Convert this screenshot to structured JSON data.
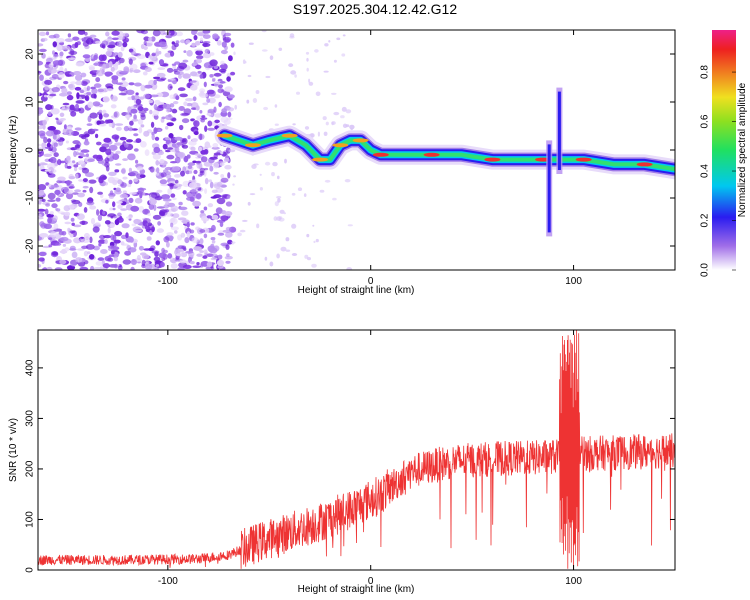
{
  "title": "S197.2025.304.12.42.G12",
  "colors": {
    "snr_line": "#ee3333",
    "axis": "#000000",
    "speckle": "#7a2fe0",
    "ridge_core": "#e83a3a"
  },
  "chart_data": [
    {
      "type": "heatmap",
      "name": "spectrogram",
      "xlabel": "Height of straight line (km)",
      "ylabel": "Frequency (Hz)",
      "xlim": [
        -164,
        150
      ],
      "ylim": [
        -25,
        25
      ],
      "xticks": [
        -100,
        0,
        100
      ],
      "xtick_labels": [
        "-100",
        "0",
        "100"
      ],
      "yticks": [
        -20,
        -10,
        0,
        10,
        20
      ],
      "ytick_labels": [
        "-20",
        "-10",
        "0",
        "10",
        "20"
      ],
      "colorbar": {
        "label": "Normalized spectral amplitude",
        "range": [
          0.0,
          0.97
        ],
        "ticks": [
          0.0,
          0.2,
          0.4,
          0.6,
          0.8
        ],
        "tick_labels": [
          "0.0",
          "0.2",
          "0.4",
          "0.6",
          "0.8"
        ]
      },
      "ridge": {
        "x": [
          -72,
          -65,
          -58,
          -50,
          -40,
          -32,
          -25,
          -20,
          -15,
          -10,
          -5,
          0,
          5,
          15,
          30,
          45,
          60,
          75,
          85,
          95,
          105,
          120,
          135,
          150
        ],
        "freq": [
          3,
          2,
          1,
          2,
          3,
          1,
          -2,
          -2,
          1,
          2,
          2,
          0,
          -1,
          -1,
          -1,
          -1,
          -2,
          -2,
          -2,
          -2,
          -2,
          -3,
          -3,
          -4
        ]
      },
      "spikes": [
        {
          "x": 88,
          "freq_min": -18,
          "freq_max": 2
        },
        {
          "x": 93,
          "freq_min": -5,
          "freq_max": 13
        }
      ]
    },
    {
      "type": "line",
      "name": "snr",
      "xlabel": "Height of straight line (km)",
      "ylabel": "SNR (10 * v/v)",
      "xlim": [
        -164,
        150
      ],
      "ylim": [
        0,
        475
      ],
      "xticks": [
        -100,
        0,
        100
      ],
      "xtick_labels": [
        "-100",
        "0",
        "100"
      ],
      "yticks": [
        0,
        100,
        200,
        300,
        400
      ],
      "ytick_labels": [
        "0",
        "100",
        "200",
        "300",
        "400"
      ],
      "trend_x": [
        -164,
        -120,
        -85,
        -70,
        -55,
        -40,
        -25,
        -10,
        5,
        20,
        40,
        60,
        80,
        92,
        100,
        120,
        150
      ],
      "trend_y": [
        20,
        20,
        22,
        30,
        55,
        75,
        95,
        120,
        150,
        195,
        215,
        220,
        222,
        225,
        230,
        232,
        236
      ]
    }
  ]
}
